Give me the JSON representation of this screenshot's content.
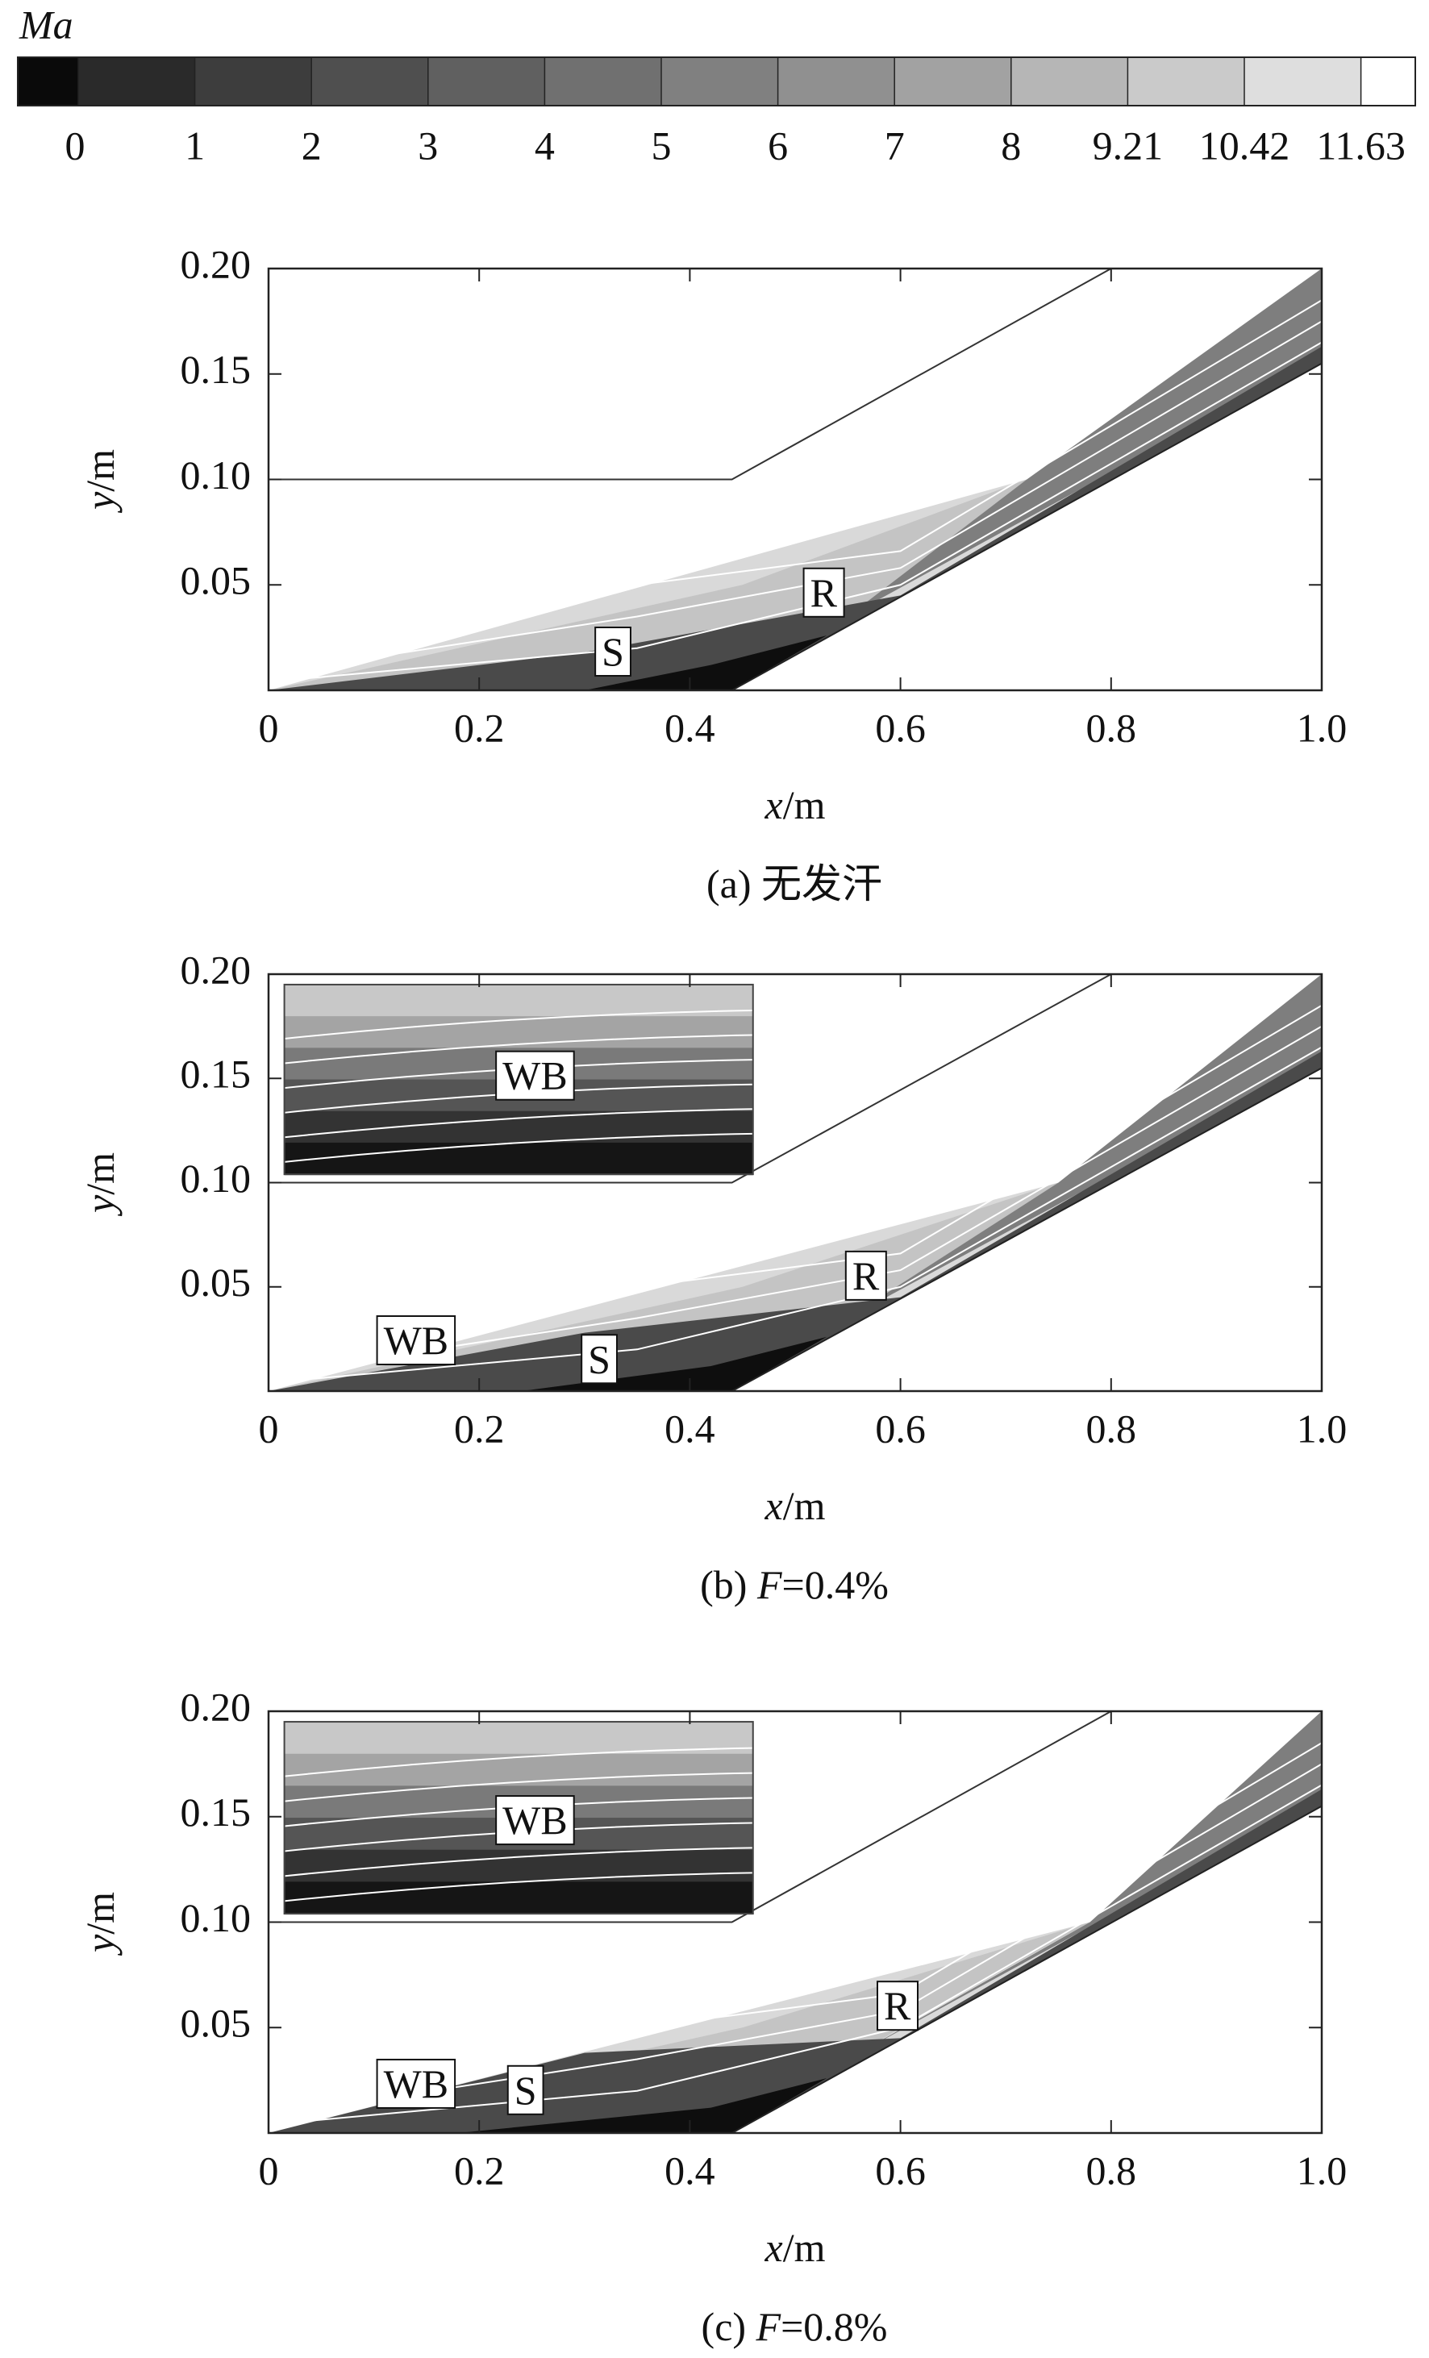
{
  "colorbar": {
    "title": "Ma",
    "ticks": [
      0,
      1,
      2,
      3,
      4,
      5,
      6,
      7,
      8,
      9.21,
      10.42,
      11.63
    ],
    "colors": [
      "#0a0a0a",
      "#2a2a2a",
      "#3d3d3d",
      "#4f4f4f",
      "#606060",
      "#707070",
      "#808080",
      "#909090",
      "#a2a2a2",
      "#b6b6b6",
      "#cacaca",
      "#dedede",
      "#ffffff"
    ]
  },
  "chart_data": [
    {
      "type": "contour",
      "x_label": {
        "var": "x",
        "unit": "/m"
      },
      "y_label": {
        "var": "y",
        "unit": "/m"
      },
      "caption": [
        {
          "text": "(a) 无发汗"
        }
      ],
      "xlim": [
        0,
        1
      ],
      "ylim": [
        0,
        0.2
      ],
      "xticks": [
        0,
        0.2,
        0.4,
        0.6,
        0.8,
        {
          "value": 1,
          "label": "1.0"
        }
      ],
      "yticks": [
        0.05,
        {
          "value": 0.1,
          "label": "0.10"
        },
        0.15,
        {
          "value": 0.2,
          "label": "0.20"
        }
      ],
      "annotations": [
        "S",
        "R"
      ]
    },
    {
      "type": "contour",
      "x_label": {
        "var": "x",
        "unit": "/m"
      },
      "y_label": {
        "var": "y",
        "unit": "/m"
      },
      "caption": [
        {
          "text": "(b) "
        },
        {
          "text": "F",
          "italic": true
        },
        {
          "text": "=0.4%"
        }
      ],
      "xlim": [
        0,
        1
      ],
      "ylim": [
        0,
        0.2
      ],
      "xticks": [
        0,
        0.2,
        0.4,
        0.6,
        0.8,
        {
          "value": 1,
          "label": "1.0"
        }
      ],
      "yticks": [
        0.05,
        {
          "value": 0.1,
          "label": "0.10"
        },
        0.15,
        {
          "value": 0.2,
          "label": "0.20"
        }
      ],
      "annotations": [
        "WB",
        "WB",
        "S",
        "R"
      ]
    },
    {
      "type": "contour",
      "x_label": {
        "var": "x",
        "unit": "/m"
      },
      "y_label": {
        "var": "y",
        "unit": "/m"
      },
      "caption": [
        {
          "text": "(c) "
        },
        {
          "text": "F",
          "italic": true
        },
        {
          "text": "=0.8%"
        }
      ],
      "xlim": [
        0,
        1
      ],
      "ylim": [
        0,
        0.2
      ],
      "xticks": [
        0,
        0.2,
        0.4,
        0.6,
        0.8,
        {
          "value": 1,
          "label": "1.0"
        }
      ],
      "yticks": [
        0.05,
        {
          "value": 0.1,
          "label": "0.10"
        },
        0.15,
        {
          "value": 0.2,
          "label": "0.20"
        }
      ],
      "annotations": [
        "WB",
        "WB",
        "S",
        "R"
      ]
    }
  ]
}
